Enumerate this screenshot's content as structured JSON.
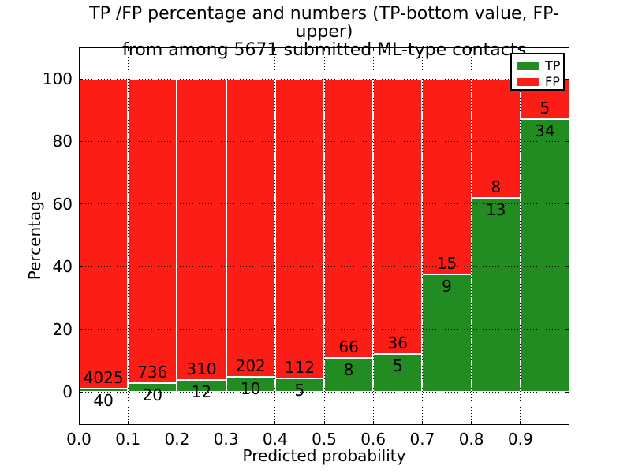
{
  "figure": {
    "title_line1": "TP /FP percentage and numbers (TP-bottom value, FP-upper)",
    "title_line2": "from among 5671 submitted ML-type contacts"
  },
  "chart_data": {
    "type": "bar",
    "subtype": "stacked-percentage",
    "title": "TP /FP percentage and numbers (TP-bottom value, FP-upper) from among 5671 submitted ML-type contacts",
    "xlabel": "Predicted probability",
    "ylabel": "Percentage",
    "total_contacts": 5671,
    "bins": [
      "0.0-0.1",
      "0.1-0.2",
      "0.2-0.3",
      "0.3-0.4",
      "0.4-0.5",
      "0.5-0.6",
      "0.6-0.7",
      "0.7-0.8",
      "0.8-0.9",
      "0.9-1.0"
    ],
    "series": [
      {
        "name": "TP",
        "color": "#228b22",
        "counts": [
          40,
          20,
          12,
          10,
          5,
          8,
          5,
          9,
          13,
          34
        ]
      },
      {
        "name": "FP",
        "color": "#fd1d17",
        "counts": [
          4025,
          736,
          310,
          202,
          112,
          66,
          36,
          15,
          8,
          5
        ]
      }
    ],
    "tp_percent_heights": [
      0.98,
      2.65,
      3.73,
      4.72,
      4.27,
      10.81,
      12.2,
      37.5,
      61.9,
      87.18
    ],
    "xticks": [
      "0.0",
      "0.1",
      "0.2",
      "0.3",
      "0.4",
      "0.5",
      "0.6",
      "0.7",
      "0.8",
      "0.9"
    ],
    "yticks": [
      0,
      20,
      40,
      60,
      80,
      100
    ],
    "xlim": [
      0.0,
      1.0
    ],
    "ylim": [
      -10.6,
      110.1
    ],
    "grid": "dotted",
    "bar_edge_color": "#ffffff",
    "background": "#ffffff",
    "legend": {
      "position": "upper-right",
      "entries": [
        "TP",
        "FP"
      ]
    }
  }
}
